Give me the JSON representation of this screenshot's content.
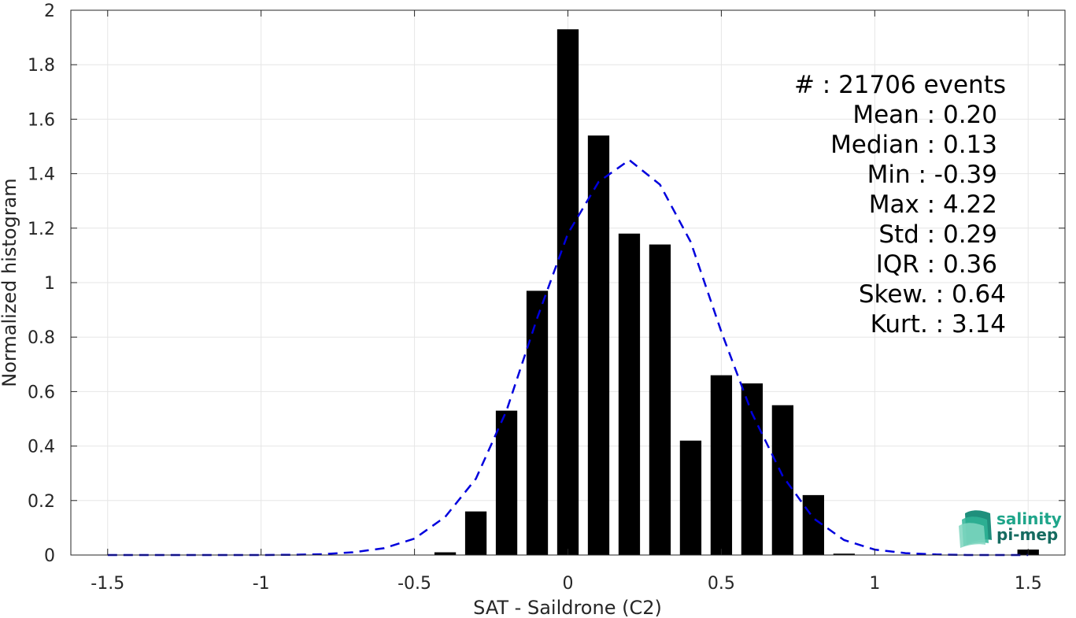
{
  "chart_data": {
    "type": "bar",
    "xlabel": "SAT - Saildrone (C2)",
    "ylabel": "Normalized histogram",
    "xlim": [
      -1.62,
      1.62
    ],
    "ylim": [
      0,
      2
    ],
    "grid": true,
    "xticks": [
      -1.5,
      -1,
      -0.5,
      0,
      0.5,
      1,
      1.5
    ],
    "xtick_labels": [
      "-1.5",
      "-1",
      "-0.5",
      "0",
      "0.5",
      "1",
      "1.5"
    ],
    "yticks": [
      0,
      0.2,
      0.4,
      0.6,
      0.8,
      1,
      1.2,
      1.4,
      1.6,
      1.8,
      2
    ],
    "ytick_labels": [
      "0",
      "0.2",
      "0.4",
      "0.6",
      "0.8",
      "1",
      "1.2",
      "1.4",
      "1.6",
      "1.8",
      "2"
    ],
    "bar_width": 0.07,
    "bars": {
      "x": [
        -0.4,
        -0.3,
        -0.2,
        -0.1,
        0.0,
        0.1,
        0.2,
        0.3,
        0.4,
        0.5,
        0.6,
        0.7,
        0.8,
        0.9,
        1.5
      ],
      "values": [
        0.01,
        0.16,
        0.53,
        0.97,
        1.93,
        1.54,
        1.18,
        1.14,
        0.42,
        0.66,
        0.63,
        0.55,
        0.22,
        0.005,
        0.02
      ],
      "color": "#000000"
    },
    "fit_curve": {
      "style": "dashed",
      "color": "#0000dd",
      "x": [
        -1.5,
        -1.4,
        -1.3,
        -1.2,
        -1.1,
        -1.0,
        -0.9,
        -0.8,
        -0.7,
        -0.6,
        -0.5,
        -0.4,
        -0.3,
        -0.2,
        -0.1,
        0.0,
        0.1,
        0.2,
        0.3,
        0.4,
        0.5,
        0.6,
        0.7,
        0.8,
        0.9,
        1.0,
        1.1,
        1.2,
        1.3,
        1.4,
        1.5
      ],
      "y": [
        0,
        0,
        0,
        0,
        0,
        0,
        0.001,
        0.003,
        0.01,
        0.025,
        0.06,
        0.14,
        0.28,
        0.53,
        0.87,
        1.18,
        1.37,
        1.45,
        1.36,
        1.15,
        0.82,
        0.52,
        0.29,
        0.135,
        0.055,
        0.02,
        0.007,
        0.002,
        0,
        0,
        0
      ]
    },
    "annotations": [
      "#  : 21706 events",
      "Mean : 0.20",
      "Median : 0.13",
      "Min : -0.39",
      "Max : 4.22",
      "Std : 0.29",
      "IQR : 0.36",
      "Skew. : 0.64",
      "Kurt. : 3.14"
    ]
  },
  "logo": {
    "line1": "salinity",
    "line2": "pi-mep",
    "color1": "#1fa58a",
    "color2": "#156b60"
  }
}
